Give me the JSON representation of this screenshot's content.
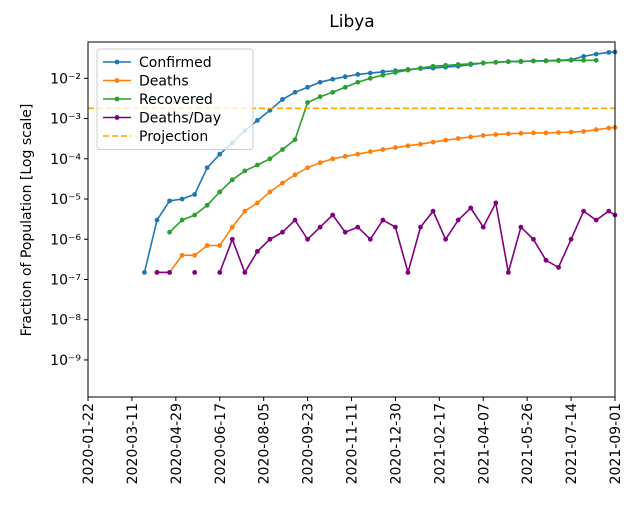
{
  "chart_data": {
    "type": "line",
    "title": "Libya",
    "ylabel": "Fraction of Population [Log scale]",
    "log_y": true,
    "x": [
      "2020-03-25",
      "2020-04-08",
      "2020-04-22",
      "2020-05-06",
      "2020-05-20",
      "2020-06-03",
      "2020-06-17",
      "2020-07-01",
      "2020-07-15",
      "2020-07-29",
      "2020-08-12",
      "2020-08-26",
      "2020-09-09",
      "2020-09-23",
      "2020-10-07",
      "2020-10-21",
      "2020-11-04",
      "2020-11-18",
      "2020-12-02",
      "2020-12-16",
      "2020-12-30",
      "2021-01-13",
      "2021-01-27",
      "2021-02-10",
      "2021-02-24",
      "2021-03-10",
      "2021-03-24",
      "2021-04-07",
      "2021-04-21",
      "2021-05-05",
      "2021-05-19",
      "2021-06-02",
      "2021-06-16",
      "2021-06-30",
      "2021-07-14",
      "2021-07-28",
      "2021-08-11",
      "2021-08-25",
      "2021-09-01"
    ],
    "series": [
      {
        "name": "Confirmed",
        "color": "#1f77b4",
        "values": [
          1.5e-07,
          3e-06,
          9e-06,
          1e-05,
          1.3e-05,
          6e-05,
          0.00013,
          0.00025,
          0.0005,
          0.0009,
          0.0016,
          0.003,
          0.0045,
          0.006,
          0.008,
          0.0095,
          0.011,
          0.0125,
          0.0135,
          0.0145,
          0.0155,
          0.0165,
          0.0175,
          0.018,
          0.019,
          0.02,
          0.022,
          0.024,
          0.025,
          0.026,
          0.0265,
          0.027,
          0.0275,
          0.028,
          0.029,
          0.035,
          0.04,
          0.044,
          0.045
        ]
      },
      {
        "name": "Deaths",
        "color": "#ff7f0e",
        "values": [
          null,
          1.5e-07,
          1.5e-07,
          4e-07,
          4e-07,
          7e-07,
          7e-07,
          2e-06,
          5e-06,
          8e-06,
          1.5e-05,
          2.5e-05,
          4e-05,
          6e-05,
          8e-05,
          0.0001,
          0.000115,
          0.00013,
          0.00015,
          0.00017,
          0.00019,
          0.00021,
          0.00023,
          0.00026,
          0.00029,
          0.00032,
          0.00035,
          0.00038,
          0.0004,
          0.00042,
          0.00043,
          0.00044,
          0.00044,
          0.00045,
          0.00046,
          0.00048,
          0.00053,
          0.00058,
          0.0006
        ]
      },
      {
        "name": "Recovered",
        "color": "#2ca02c",
        "values": [
          null,
          null,
          1.5e-06,
          3e-06,
          4e-06,
          7e-06,
          1.5e-05,
          3e-05,
          5e-05,
          7e-05,
          0.0001,
          0.00017,
          0.0003,
          0.0025,
          0.0035,
          0.0045,
          0.006,
          0.008,
          0.01,
          0.012,
          0.014,
          0.016,
          0.018,
          0.02,
          0.021,
          0.022,
          0.023,
          0.024,
          0.025,
          0.026,
          0.026,
          0.027,
          0.027,
          0.0275,
          0.028,
          0.028,
          0.028,
          null,
          null
        ]
      },
      {
        "name": "Deaths/Day",
        "color": "#800080",
        "values": [
          null,
          1.5e-07,
          1.5e-07,
          null,
          1.5e-07,
          null,
          1.5e-07,
          1e-06,
          1.5e-07,
          5e-07,
          1e-06,
          1.5e-06,
          3e-06,
          1e-06,
          2e-06,
          4e-06,
          1.5e-06,
          2e-06,
          1e-06,
          3e-06,
          2e-06,
          1.5e-07,
          2e-06,
          5e-06,
          1e-06,
          3e-06,
          6e-06,
          2e-06,
          8e-06,
          1.5e-07,
          2e-06,
          1e-06,
          3e-07,
          2e-07,
          1e-06,
          5e-06,
          3e-06,
          5e-06,
          4e-06
        ]
      }
    ],
    "projection": {
      "name": "Projection",
      "value": 0.0018,
      "color": "#ffa500"
    },
    "xlim": [
      "2020-01-22",
      "2021-09-01"
    ],
    "xticks": [
      "2020-01-22",
      "2020-03-11",
      "2020-04-29",
      "2020-06-17",
      "2020-08-05",
      "2020-09-23",
      "2020-11-11",
      "2020-12-30",
      "2021-02-17",
      "2021-04-07",
      "2021-05-26",
      "2021-07-14",
      "2021-09-01"
    ],
    "ylim": [
      1.2e-10,
      0.08
    ],
    "yticks": [
      {
        "value": 1e-09,
        "label": "10⁻⁹"
      },
      {
        "value": 1e-08,
        "label": "10⁻⁸"
      },
      {
        "value": 1e-07,
        "label": "10⁻⁷"
      },
      {
        "value": 1e-06,
        "label": "10⁻⁶"
      },
      {
        "value": 1e-05,
        "label": "10⁻⁵"
      },
      {
        "value": 0.0001,
        "label": "10⁻⁴"
      },
      {
        "value": 0.001,
        "label": "10⁻³"
      },
      {
        "value": 0.01,
        "label": "10⁻²"
      }
    ],
    "legend": "upper left"
  }
}
